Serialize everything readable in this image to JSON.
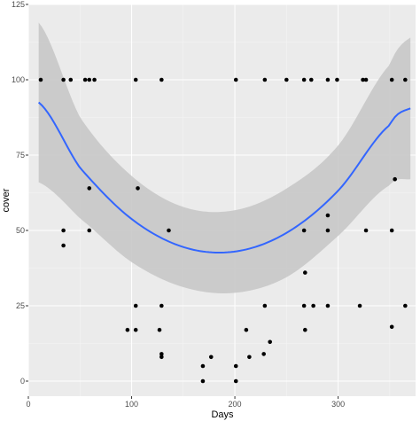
{
  "chart_data": {
    "type": "scatter",
    "title": "",
    "xlabel": "Days",
    "ylabel": "cover",
    "xlim": [
      0,
      375
    ],
    "ylim": [
      -5,
      125
    ],
    "x_ticks": [
      0,
      100,
      200,
      300
    ],
    "x_tick_labels": [
      "0",
      "100",
      "200",
      "300"
    ],
    "y_ticks": [
      0,
      25,
      50,
      75,
      100,
      125
    ],
    "y_tick_labels": [
      "0",
      "25",
      "50",
      "75",
      "100",
      "125"
    ],
    "grid": true,
    "legend": "none",
    "colors": {
      "panel": "#ebebeb",
      "grid_major": "#ffffff",
      "grid_minor": "#f5f5f5",
      "points": "#000000",
      "smooth_line": "#3366ff",
      "ribbon": "#c8c8c8"
    },
    "points": [
      {
        "x": 12,
        "y": 100
      },
      {
        "x": 34,
        "y": 100
      },
      {
        "x": 41,
        "y": 100
      },
      {
        "x": 55,
        "y": 100
      },
      {
        "x": 59,
        "y": 100
      },
      {
        "x": 64,
        "y": 100
      },
      {
        "x": 104,
        "y": 100
      },
      {
        "x": 129,
        "y": 100
      },
      {
        "x": 201,
        "y": 100
      },
      {
        "x": 229,
        "y": 100
      },
      {
        "x": 250,
        "y": 100
      },
      {
        "x": 267,
        "y": 100
      },
      {
        "x": 274,
        "y": 100
      },
      {
        "x": 290,
        "y": 100
      },
      {
        "x": 299,
        "y": 100
      },
      {
        "x": 324,
        "y": 100
      },
      {
        "x": 327,
        "y": 100
      },
      {
        "x": 352,
        "y": 100
      },
      {
        "x": 365,
        "y": 100
      },
      {
        "x": 59,
        "y": 64
      },
      {
        "x": 106,
        "y": 64
      },
      {
        "x": 355,
        "y": 67
      },
      {
        "x": 34,
        "y": 50
      },
      {
        "x": 34,
        "y": 45
      },
      {
        "x": 59,
        "y": 50
      },
      {
        "x": 136,
        "y": 50
      },
      {
        "x": 267,
        "y": 50
      },
      {
        "x": 290,
        "y": 55
      },
      {
        "x": 290,
        "y": 50
      },
      {
        "x": 327,
        "y": 50
      },
      {
        "x": 352,
        "y": 50
      },
      {
        "x": 268,
        "y": 36
      },
      {
        "x": 104,
        "y": 25
      },
      {
        "x": 129,
        "y": 25
      },
      {
        "x": 229,
        "y": 25
      },
      {
        "x": 267,
        "y": 25
      },
      {
        "x": 276,
        "y": 25
      },
      {
        "x": 290,
        "y": 25
      },
      {
        "x": 321,
        "y": 25
      },
      {
        "x": 365,
        "y": 25
      },
      {
        "x": 96,
        "y": 17
      },
      {
        "x": 104,
        "y": 17
      },
      {
        "x": 127,
        "y": 17
      },
      {
        "x": 129,
        "y": 9
      },
      {
        "x": 129,
        "y": 8
      },
      {
        "x": 211,
        "y": 17
      },
      {
        "x": 268,
        "y": 17
      },
      {
        "x": 352,
        "y": 18
      },
      {
        "x": 234,
        "y": 13
      },
      {
        "x": 228,
        "y": 9
      },
      {
        "x": 214,
        "y": 8
      },
      {
        "x": 177,
        "y": 8
      },
      {
        "x": 169,
        "y": 5
      },
      {
        "x": 201,
        "y": 5
      },
      {
        "x": 169,
        "y": 0
      },
      {
        "x": 201,
        "y": 0
      }
    ],
    "smooth": {
      "x": [
        10,
        50,
        100,
        150,
        200,
        250,
        300,
        350,
        370
      ],
      "y": [
        92.5,
        70.8,
        53.8,
        44.5,
        43.0,
        49.2,
        63.2,
        85.0,
        90.5
      ],
      "lower": [
        66.0,
        54.0,
        39.5,
        31.2,
        29.3,
        34.5,
        48.2,
        65.0,
        67.0
      ],
      "upper": [
        119.0,
        87.6,
        68.1,
        57.8,
        56.7,
        63.9,
        78.2,
        105.0,
        114.0
      ]
    }
  }
}
